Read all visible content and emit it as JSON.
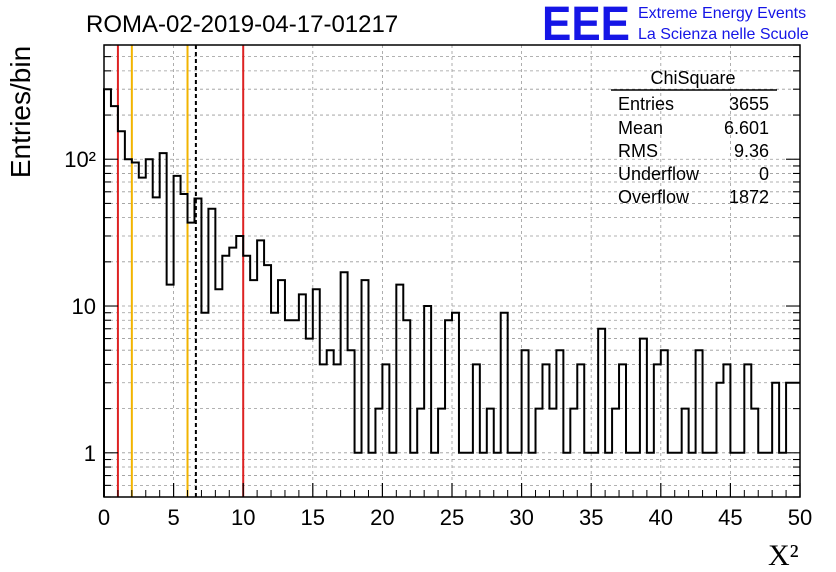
{
  "header": {
    "run_title": "ROMA-02-2019-04-17-01217",
    "logo_text": "EEE",
    "logo_line1": "Extreme Energy Events",
    "logo_line2": "La Scienza nelle Scuole"
  },
  "stats_box": {
    "title": "ChiSquare",
    "rows": [
      {
        "label": "Entries",
        "value": "3655"
      },
      {
        "label": "Mean",
        "value": "6.601"
      },
      {
        "label": "RMS",
        "value": "9.36"
      },
      {
        "label": "Underflow",
        "value": "0"
      },
      {
        "label": "Overflow",
        "value": "1872"
      }
    ]
  },
  "colors": {
    "histogram": "#000000",
    "grid": "#999999",
    "red_lines": "#dd2222",
    "orange_lines": "#f2b400",
    "dashed_line": "#000000"
  },
  "chart_data": {
    "type": "histogram",
    "title": "ROMA-02-2019-04-17-01217",
    "xlabel": "X²",
    "ylabel": "Entries/bin",
    "xlim": [
      0,
      50
    ],
    "ylim": [
      0.5,
      600
    ],
    "yscale": "log",
    "grid": true,
    "bin_width": 0.5,
    "x_ticks": [
      0,
      5,
      10,
      15,
      20,
      25,
      30,
      35,
      40,
      45,
      50
    ],
    "x_tick_labels": [
      "0",
      "5",
      "10",
      "15",
      "20",
      "25",
      "30",
      "35",
      "40",
      "45",
      "50"
    ],
    "y_ticks": [
      1,
      10,
      100
    ],
    "y_tick_labels": [
      "1",
      "10",
      "10²"
    ],
    "counts": [
      300,
      230,
      155,
      100,
      95,
      75,
      100,
      55,
      110,
      14,
      77,
      58,
      37,
      54,
      9,
      46,
      13,
      22,
      25,
      30,
      22,
      15,
      28,
      19,
      9,
      15,
      8,
      8,
      12,
      6,
      13,
      4,
      5,
      4,
      17,
      5,
      1,
      15,
      1,
      2,
      4,
      1,
      14,
      8,
      1,
      2,
      10,
      1,
      2,
      8,
      9,
      1,
      1,
      4,
      1,
      2,
      1,
      9,
      1,
      1,
      5,
      1,
      2,
      4,
      2,
      5,
      1,
      2,
      4,
      1,
      1,
      7,
      1,
      2,
      4,
      1,
      1,
      6,
      1,
      4,
      5,
      1,
      1,
      2,
      1,
      5,
      1,
      1,
      3,
      4,
      1,
      1,
      4,
      2,
      1,
      1,
      3,
      1,
      3,
      3
    ],
    "vertical_lines": [
      {
        "x": 1,
        "style": "red-solid"
      },
      {
        "x": 2,
        "style": "orange-solid"
      },
      {
        "x": 6,
        "style": "orange-solid"
      },
      {
        "x": 6.601,
        "style": "black-dashed"
      },
      {
        "x": 10,
        "style": "red-solid"
      }
    ]
  }
}
